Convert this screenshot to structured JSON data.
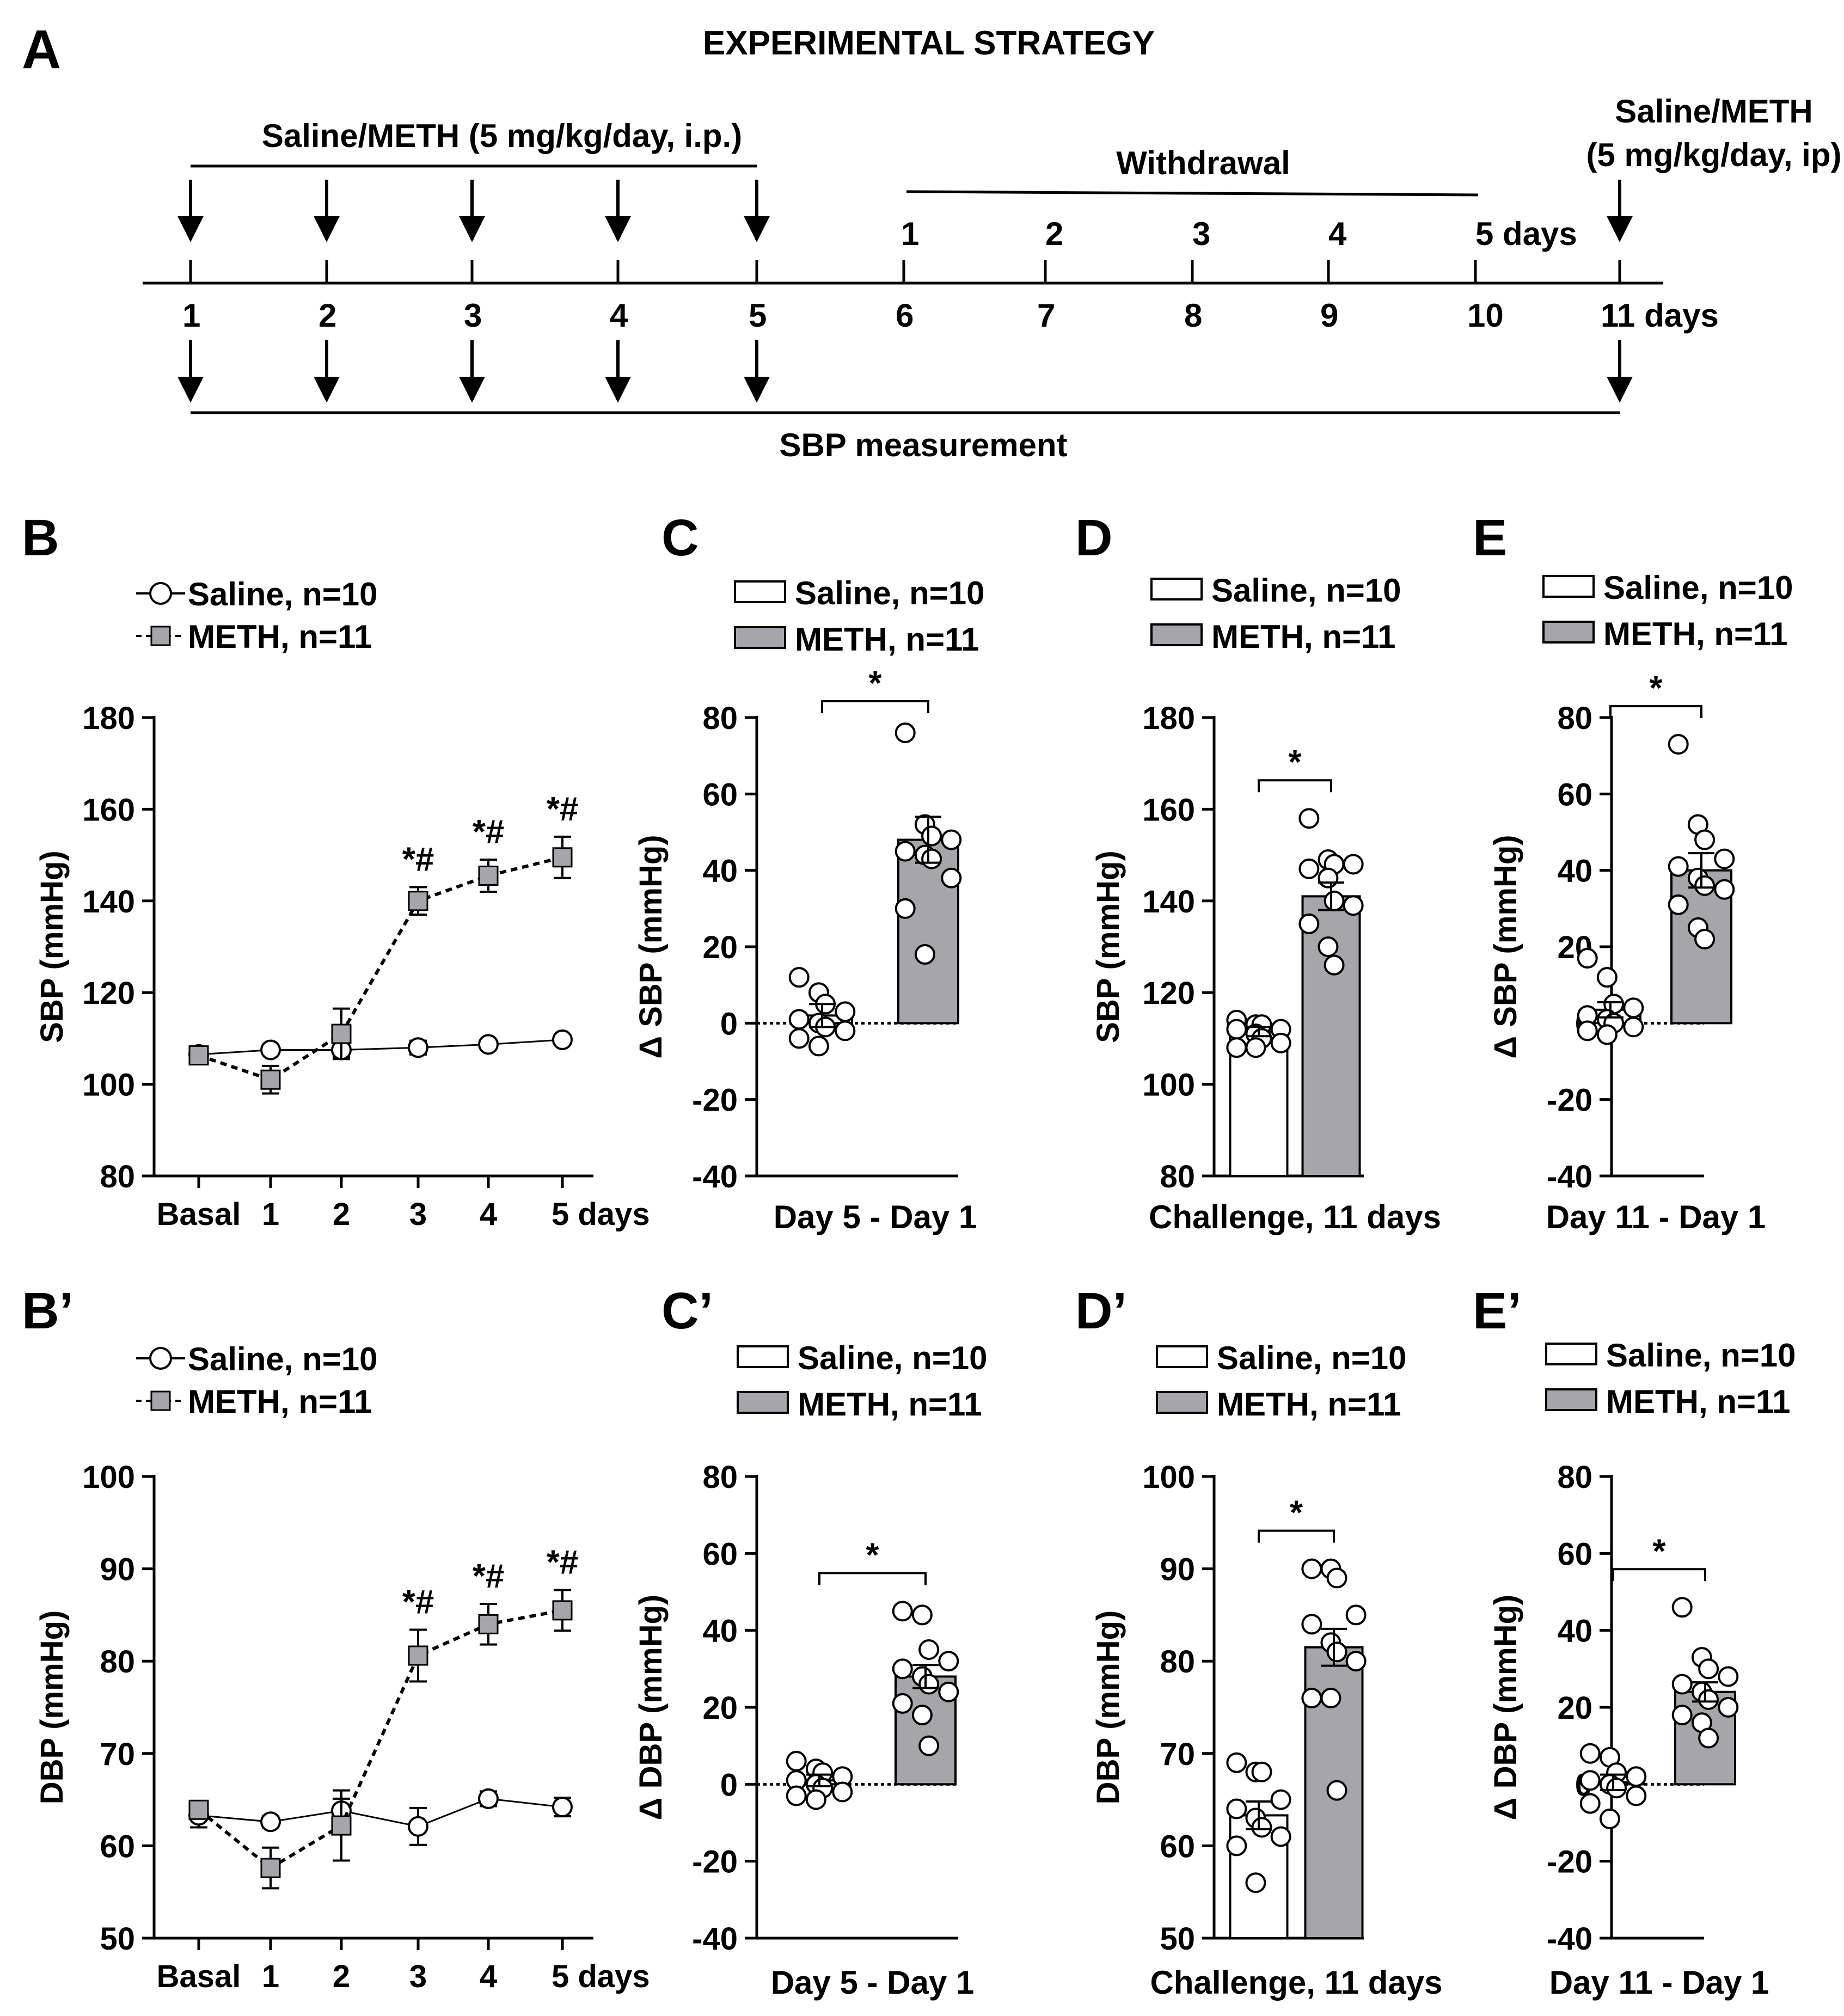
{
  "colors": {
    "saline": "#ffffff",
    "meth": "#a6a5aa",
    "stroke": "#000000"
  },
  "strategy": {
    "panel": "A",
    "title": "EXPERIMENTAL STRATEGY",
    "meth_label": "Saline/METH (5 mg/kg/day, i.p.)",
    "withdrawal_label": "Withdrawal",
    "challenge_label_1": "Saline/METH",
    "challenge_label_2": "(5 mg/kg/day, ip)",
    "withdrawal_days": [
      "1",
      "2",
      "3",
      "4",
      "5 days"
    ],
    "timeline_days": [
      "1",
      "2",
      "3",
      "4",
      "5",
      "6",
      "7",
      "8",
      "9",
      "10",
      "11 days"
    ],
    "sbp_label": "SBP measurement"
  },
  "legends": {
    "saline": "Saline, n=10",
    "meth": "METH, n=11"
  },
  "chart_data": [
    {
      "panel": "B",
      "type": "line",
      "ylabel": "SBP (mmHg)",
      "ylim": [
        80,
        180
      ],
      "yticks": [
        80,
        100,
        120,
        140,
        160,
        180
      ],
      "categories": [
        "Basal",
        "1",
        "2",
        "3",
        "4",
        "5 days"
      ],
      "series": [
        {
          "name": "Saline, n=10",
          "values": [
            106.5,
            107.5,
            107.5,
            108,
            108.7,
            109.7
          ],
          "err": [
            1.5,
            1,
            1.5,
            1.5,
            1,
            1
          ]
        },
        {
          "name": "METH, n=11",
          "values": [
            106.3,
            101,
            111,
            140,
            145.5,
            149.5
          ],
          "err": [
            1.5,
            3,
            5.5,
            3,
            3.5,
            4.5
          ]
        }
      ],
      "annotations": [
        {
          "category": "3",
          "text": "*#"
        },
        {
          "category": "4",
          "text": "*#"
        },
        {
          "category": "5 days",
          "text": "*#"
        }
      ]
    },
    {
      "panel": "C",
      "type": "bar",
      "ylabel": "Δ SBP (mmHg)",
      "xlabel": "Day 5 - Day 1",
      "ylim": [
        -40,
        80
      ],
      "yticks": [
        -40,
        -20,
        0,
        20,
        40,
        60,
        80
      ],
      "categories": [
        "Saline, n=10",
        "METH, n=11"
      ],
      "series": [
        {
          "name": "Saline, n=10",
          "mean": 2,
          "err": 3,
          "points": [
            12,
            8,
            5,
            3,
            1,
            0,
            -1,
            -2,
            -4,
            -6
          ]
        },
        {
          "name": "METH, n=11",
          "mean": 48,
          "err": 6,
          "points": [
            76,
            52,
            49,
            48,
            45,
            44,
            43,
            38,
            30,
            18
          ]
        }
      ],
      "significance": "*"
    },
    {
      "panel": "D",
      "type": "bar",
      "ylabel": "SBP (mmHg)",
      "xlabel": "Challenge, 11 days",
      "ylim": [
        80,
        180
      ],
      "yticks": [
        80,
        100,
        120,
        140,
        160,
        180
      ],
      "categories": [
        "Saline, n=10",
        "METH, n=11"
      ],
      "series": [
        {
          "name": "Saline, n=10",
          "mean": 111.5,
          "err": 1,
          "points": [
            114,
            113,
            113,
            112,
            112,
            111,
            110,
            109,
            108,
            108
          ]
        },
        {
          "name": "METH, n=11",
          "mean": 141,
          "err": 3,
          "points": [
            158,
            149,
            148,
            148,
            147,
            145,
            140,
            139,
            135,
            130,
            126
          ]
        }
      ],
      "significance": "*"
    },
    {
      "panel": "E",
      "type": "bar",
      "ylabel": "Δ SBP (mmHg)",
      "xlabel": "Day 11 - Day 1",
      "ylim": [
        -40,
        80
      ],
      "yticks": [
        -40,
        -20,
        0,
        20,
        40,
        60,
        80
      ],
      "categories": [
        "Saline, n=10",
        "METH, n=11"
      ],
      "series": [
        {
          "name": "Saline, n=10",
          "mean": 3.5,
          "err": 2,
          "points": [
            17,
            12,
            5,
            4,
            2,
            1,
            0,
            -1,
            -2,
            -3
          ]
        },
        {
          "name": "METH, n=11",
          "mean": 40,
          "err": 4.5,
          "points": [
            73,
            52,
            48,
            43,
            41,
            38,
            36,
            35,
            31,
            25,
            22
          ]
        }
      ],
      "significance": "*"
    },
    {
      "panel": "B’",
      "type": "line",
      "ylabel": "DBP (mmHg)",
      "ylim": [
        50,
        100
      ],
      "yticks": [
        50,
        60,
        70,
        80,
        90,
        100
      ],
      "categories": [
        "Basal",
        "1",
        "2",
        "3",
        "4",
        "5 days"
      ],
      "series": [
        {
          "name": "Saline, n=10",
          "values": [
            63.3,
            62.6,
            63.8,
            62.1,
            65.1,
            64.2
          ],
          "err": [
            1.3,
            0.6,
            1.3,
            2,
            0.8,
            1
          ]
        },
        {
          "name": "METH, n=11",
          "values": [
            63.9,
            57.6,
            62.2,
            80.6,
            84,
            85.5
          ],
          "err": [
            0.8,
            2.2,
            3.8,
            2.8,
            2.2,
            2.2
          ]
        }
      ],
      "annotations": [
        {
          "category": "3",
          "text": "*#"
        },
        {
          "category": "4",
          "text": "*#"
        },
        {
          "category": "5 days",
          "text": "*#"
        }
      ]
    },
    {
      "panel": "C’",
      "type": "bar",
      "ylabel": "Δ DBP (mmHg)",
      "xlabel": "Day 5 - Day 1",
      "ylim": [
        -40,
        80
      ],
      "yticks": [
        -40,
        -20,
        0,
        20,
        40,
        60,
        80
      ],
      "categories": [
        "Saline, n=10",
        "METH, n=11"
      ],
      "series": [
        {
          "name": "Saline, n=10",
          "mean": 1,
          "err": 1.5,
          "points": [
            6,
            4,
            3,
            2,
            1,
            0,
            -1,
            -2,
            -3,
            -4
          ]
        },
        {
          "name": "METH, n=11",
          "mean": 28,
          "err": 3,
          "points": [
            45,
            44,
            35,
            32,
            30,
            28,
            26,
            24,
            21,
            18,
            10
          ]
        }
      ],
      "significance": "*"
    },
    {
      "panel": "D’",
      "type": "bar",
      "ylabel": "DBP (mmHg)",
      "xlabel": "Challenge, 11 days",
      "ylim": [
        50,
        100
      ],
      "yticks": [
        50,
        60,
        70,
        80,
        90,
        100
      ],
      "categories": [
        "Saline, n=10",
        "METH, n=11"
      ],
      "series": [
        {
          "name": "Saline, n=10",
          "mean": 63.3,
          "err": 1.5,
          "points": [
            69,
            68,
            68,
            65,
            64,
            63,
            62,
            61,
            60,
            56
          ]
        },
        {
          "name": "METH, n=11",
          "mean": 81.5,
          "err": 2,
          "points": [
            90,
            90,
            89,
            85,
            84,
            82,
            81,
            80,
            76,
            76,
            66
          ]
        }
      ],
      "significance": "*"
    },
    {
      "panel": "E’",
      "type": "bar",
      "ylabel": "Δ DBP (mmHg)",
      "xlabel": "Day 11 - Day 1",
      "ylim": [
        -40,
        80
      ],
      "yticks": [
        -40,
        -20,
        0,
        20,
        40,
        60,
        80
      ],
      "categories": [
        "Saline, n=10",
        "METH, n=11"
      ],
      "series": [
        {
          "name": "Saline, n=10",
          "mean": 0.5,
          "err": 2,
          "points": [
            8,
            7,
            3,
            2,
            1,
            0,
            -1,
            -3,
            -5,
            -9
          ]
        },
        {
          "name": "METH, n=11",
          "mean": 24,
          "err": 2.5,
          "points": [
            46,
            33,
            30,
            28,
            26,
            24,
            22,
            20,
            18,
            16,
            12
          ]
        }
      ],
      "significance": "*"
    }
  ]
}
